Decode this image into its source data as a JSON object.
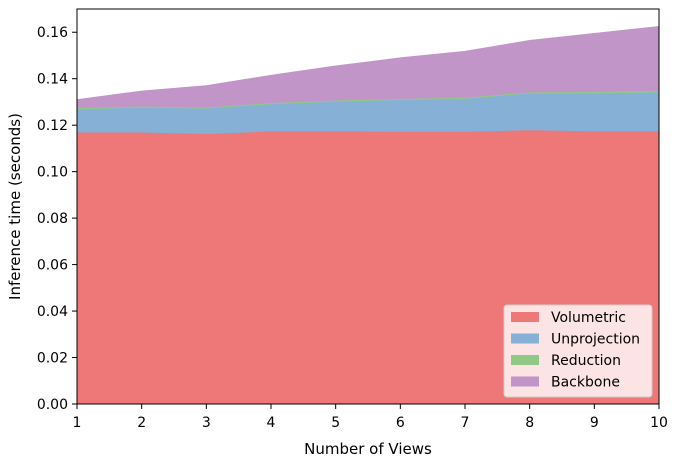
{
  "chart_data": {
    "type": "area",
    "stacked": true,
    "xlabel": "Number of Views",
    "ylabel": "Inference time (seconds)",
    "xlim": [
      1,
      10
    ],
    "ylim": [
      0,
      0.17
    ],
    "x": [
      1,
      2,
      3,
      4,
      5,
      6,
      7,
      8,
      9,
      10
    ],
    "x_ticks": [
      "1",
      "2",
      "3",
      "4",
      "5",
      "6",
      "7",
      "8",
      "9",
      "10"
    ],
    "y_ticks": [
      "0.00",
      "0.02",
      "0.04",
      "0.06",
      "0.08",
      "0.10",
      "0.12",
      "0.14",
      "0.16"
    ],
    "y_tick_values": [
      0,
      0.02,
      0.04,
      0.06,
      0.08,
      0.1,
      0.12,
      0.14,
      0.16
    ],
    "grid": false,
    "legend_position": "bottom-right",
    "series": [
      {
        "name": "Volumetric",
        "color": "#ee7777",
        "values": [
          0.117,
          0.117,
          0.1163,
          0.1175,
          0.1175,
          0.1173,
          0.1173,
          0.118,
          0.1175,
          0.1175
        ]
      },
      {
        "name": "Unprojection",
        "color": "#86b0d5",
        "values": [
          0.01,
          0.0107,
          0.011,
          0.0117,
          0.0128,
          0.0137,
          0.0142,
          0.0158,
          0.0163,
          0.0168
        ]
      },
      {
        "name": "Reduction",
        "color": "#90c985",
        "values": [
          0.0005,
          0.0005,
          0.0005,
          0.0005,
          0.0005,
          0.0005,
          0.0005,
          0.0005,
          0.0007,
          0.0007
        ]
      },
      {
        "name": "Backbone",
        "color": "#c195c8",
        "values": [
          0.0035,
          0.0065,
          0.0092,
          0.0118,
          0.0147,
          0.0175,
          0.0198,
          0.0222,
          0.025,
          0.0275
        ]
      }
    ]
  }
}
